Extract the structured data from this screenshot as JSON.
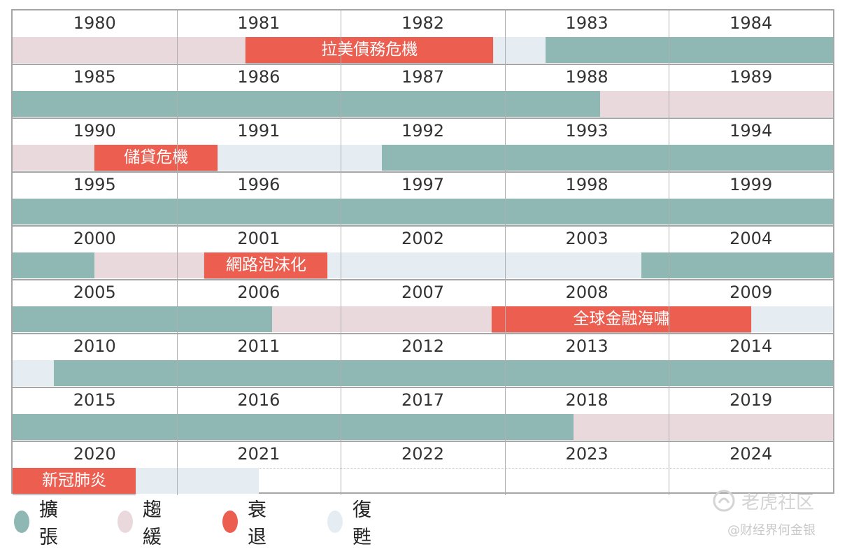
{
  "chart_data": {
    "type": "table",
    "title": "",
    "colors": {
      "expansion": "#8fb7b4",
      "slowdown": "#ead9dc",
      "recession": "#ec5e50",
      "recovery": "#e6edf2"
    },
    "years": [
      [
        "1980",
        "1981",
        "1982",
        "1983",
        "1984"
      ],
      [
        "1985",
        "1986",
        "1987",
        "1988",
        "1989"
      ],
      [
        "1990",
        "1991",
        "1992",
        "1993",
        "1994"
      ],
      [
        "1995",
        "1996",
        "1997",
        "1998",
        "1999"
      ],
      [
        "2000",
        "2001",
        "2002",
        "2003",
        "2004"
      ],
      [
        "2005",
        "2006",
        "2007",
        "2008",
        "2009"
      ],
      [
        "2010",
        "2011",
        "2012",
        "2013",
        "2014"
      ],
      [
        "2015",
        "2016",
        "2017",
        "2018",
        "2019"
      ],
      [
        "2020",
        "2021",
        "2022",
        "2023",
        "2024"
      ]
    ],
    "phases": [
      [
        {
          "phase": "slowdown",
          "start": 0.0,
          "end": 1.42
        },
        {
          "phase": "recession",
          "start": 1.42,
          "end": 2.93
        },
        {
          "phase": "recovery",
          "start": 2.93,
          "end": 3.25
        },
        {
          "phase": "expansion",
          "start": 3.25,
          "end": 5.0
        }
      ],
      [
        {
          "phase": "expansion",
          "start": 0.0,
          "end": 3.58
        },
        {
          "phase": "slowdown",
          "start": 3.58,
          "end": 5.0
        }
      ],
      [
        {
          "phase": "slowdown",
          "start": 0.0,
          "end": 0.5
        },
        {
          "phase": "recession",
          "start": 0.5,
          "end": 1.25
        },
        {
          "phase": "recovery",
          "start": 1.25,
          "end": 2.25
        },
        {
          "phase": "expansion",
          "start": 2.25,
          "end": 5.0
        }
      ],
      [
        {
          "phase": "expansion",
          "start": 0.0,
          "end": 5.0
        }
      ],
      [
        {
          "phase": "expansion",
          "start": 0.0,
          "end": 0.5
        },
        {
          "phase": "slowdown",
          "start": 0.5,
          "end": 1.17
        },
        {
          "phase": "recession",
          "start": 1.17,
          "end": 1.92
        },
        {
          "phase": "recovery",
          "start": 1.92,
          "end": 3.83
        },
        {
          "phase": "expansion",
          "start": 3.83,
          "end": 5.0
        }
      ],
      [
        {
          "phase": "expansion",
          "start": 0.0,
          "end": 1.58
        },
        {
          "phase": "slowdown",
          "start": 1.58,
          "end": 2.92
        },
        {
          "phase": "recession",
          "start": 2.92,
          "end": 4.5
        },
        {
          "phase": "recovery",
          "start": 4.5,
          "end": 5.0
        }
      ],
      [
        {
          "phase": "recovery",
          "start": 0.0,
          "end": 0.25
        },
        {
          "phase": "expansion",
          "start": 0.25,
          "end": 5.0
        }
      ],
      [
        {
          "phase": "expansion",
          "start": 0.0,
          "end": 3.42
        },
        {
          "phase": "slowdown",
          "start": 3.42,
          "end": 5.0
        }
      ],
      [
        {
          "phase": "recession",
          "start": 0.0,
          "end": 0.75
        },
        {
          "phase": "recovery",
          "start": 0.75,
          "end": 1.5
        }
      ]
    ],
    "crisis_labels": [
      {
        "row": 0,
        "text": "拉美債務危機"
      },
      {
        "row": 2,
        "text": "儲貸危機"
      },
      {
        "row": 4,
        "text": "網路泡沫化"
      },
      {
        "row": 5,
        "text": "全球金融海嘯"
      },
      {
        "row": 8,
        "text": "新冠肺炎"
      }
    ],
    "legend": [
      {
        "key": "expansion",
        "label": "擴張"
      },
      {
        "key": "slowdown",
        "label": "趨緩"
      },
      {
        "key": "recession",
        "label": "衰退"
      },
      {
        "key": "recovery",
        "label": "復甦"
      }
    ]
  },
  "watermark": {
    "logo_text": "老虎社区",
    "author": "@财经界何金银"
  }
}
